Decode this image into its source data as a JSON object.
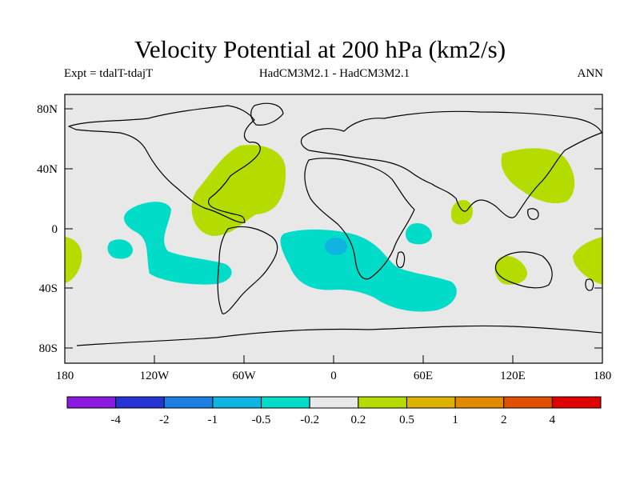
{
  "map": {
    "title": "Velocity Potential at 200 hPa (km2/s)",
    "experiment": "Expt = tdalT-tdajT",
    "models": "HadCM3M2.1 - HadCM3M2.1",
    "season": "ANN",
    "lat_labels": [
      "80N",
      "40N",
      "0",
      "40S",
      "80S"
    ],
    "lon_labels": [
      "180",
      "120W",
      "60W",
      "0",
      "60E",
      "120E",
      "180"
    ]
  },
  "colorbar": {
    "labels": [
      "-4",
      "-2",
      "-1",
      "-0.5",
      "-0.2",
      "0.2",
      "0.5",
      "1",
      "2",
      "4"
    ],
    "colors": [
      "#8a1ae0",
      "#2634d6",
      "#1a7fe0",
      "#10b4e0",
      "#00dcc8",
      "#e8e8e8",
      "#b4dc00",
      "#dcb400",
      "#e08a00",
      "#e05000",
      "#e00000"
    ]
  },
  "colors": {
    "land_fill": "#e8e8e8",
    "positive": "#b4dc00",
    "negative": "#00dcc8",
    "strong_negative": "#10b4e0"
  }
}
